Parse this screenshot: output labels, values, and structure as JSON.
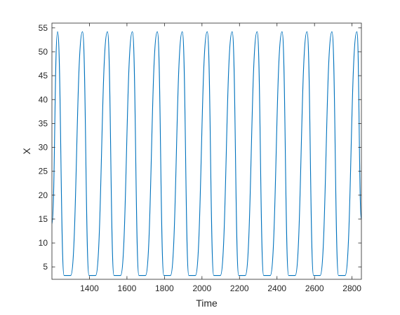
{
  "chart_data": {
    "type": "line",
    "title": "",
    "xlabel": "Time",
    "ylabel": "X",
    "xlim": [
      1200,
      2850
    ],
    "ylim": [
      2.4,
      56
    ],
    "xticks": [
      1400,
      1600,
      1800,
      2000,
      2200,
      2400,
      2600,
      2800
    ],
    "yticks": [
      5,
      10,
      15,
      20,
      25,
      30,
      35,
      40,
      45,
      50,
      55
    ],
    "grid": false,
    "legend": "none",
    "line_color": "#0072BD",
    "series": [
      {
        "x": [
          1200,
          1230,
          1265,
          1300,
          1363,
          1398,
          1433,
          1496,
          1531,
          1566,
          1629,
          1664,
          1699,
          1762,
          1797,
          1832,
          1895,
          1930,
          1965,
          2028,
          2063,
          2098,
          2161,
          2196,
          2231,
          2294,
          2329,
          2364,
          2427,
          2462,
          2497,
          2560,
          2595,
          2630,
          2693,
          2728,
          2763,
          2826,
          2850
        ],
        "values": [
          14,
          54.2,
          3.2,
          3.2,
          54.2,
          3.2,
          3.2,
          54.2,
          3.2,
          3.2,
          54.2,
          3.2,
          3.2,
          54.2,
          3.2,
          3.2,
          54.2,
          3.2,
          3.2,
          54.2,
          3.2,
          3.2,
          54.2,
          3.2,
          3.2,
          54.2,
          3.2,
          3.2,
          54.2,
          3.2,
          3.2,
          54.2,
          3.2,
          3.2,
          54.2,
          3.2,
          3.2,
          54.2,
          15
        ]
      }
    ]
  }
}
